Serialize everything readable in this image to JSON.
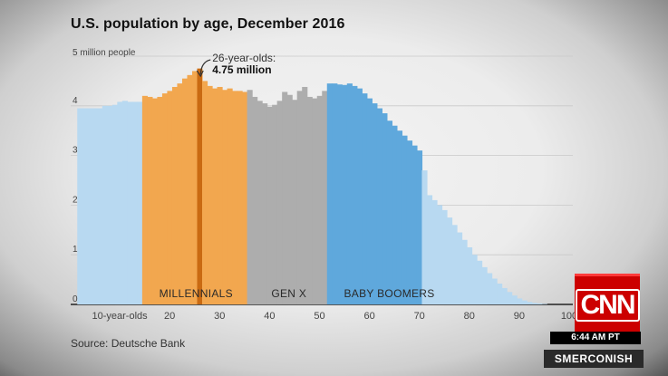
{
  "chart_data": {
    "type": "area",
    "title": "U.S. population by age, December 2016",
    "source": "Source: Deutsche Bank",
    "ylabel_top": "5 million people",
    "ylim": [
      0,
      5
    ],
    "xlim": [
      2,
      100
    ],
    "y_ticks": [
      "0",
      "1",
      "2",
      "3",
      "4"
    ],
    "x_ticks": [
      {
        "value": 10,
        "label": "10-year-olds"
      },
      {
        "value": 20,
        "label": "20"
      },
      {
        "value": 30,
        "label": "30"
      },
      {
        "value": 40,
        "label": "40"
      },
      {
        "value": 50,
        "label": "50"
      },
      {
        "value": 60,
        "label": "60"
      },
      {
        "value": 70,
        "label": "70"
      },
      {
        "value": 80,
        "label": "80"
      },
      {
        "value": 90,
        "label": "90"
      },
      {
        "value": 100,
        "label": "100"
      }
    ],
    "grid": true,
    "annotation": {
      "line1": "26-year-olds:",
      "line2": "4.75 million",
      "age": 26
    },
    "series": [
      {
        "name": "MILLENNIALS",
        "color": "#f2a74f",
        "from": 15,
        "to": 35
      },
      {
        "name": "GEN X",
        "color": "#adadad",
        "from": 36,
        "to": 51
      },
      {
        "name": "BABY BOOMERS",
        "color": "#5fa8dc",
        "from": 52,
        "to": 70
      }
    ],
    "other_color": "#b8d9f1",
    "ages": [
      2,
      3,
      4,
      5,
      6,
      7,
      8,
      9,
      10,
      11,
      12,
      13,
      14,
      15,
      16,
      17,
      18,
      19,
      20,
      21,
      22,
      23,
      24,
      25,
      26,
      27,
      28,
      29,
      30,
      31,
      32,
      33,
      34,
      35,
      36,
      37,
      38,
      39,
      40,
      41,
      42,
      43,
      44,
      45,
      46,
      47,
      48,
      49,
      50,
      51,
      52,
      53,
      54,
      55,
      56,
      57,
      58,
      59,
      60,
      61,
      62,
      63,
      64,
      65,
      66,
      67,
      68,
      69,
      70,
      71,
      72,
      73,
      74,
      75,
      76,
      77,
      78,
      79,
      80,
      81,
      82,
      83,
      84,
      85,
      86,
      87,
      88,
      89,
      90,
      91,
      92,
      93,
      94,
      95,
      96,
      97,
      98,
      99
    ],
    "values": [
      3.95,
      3.95,
      3.95,
      3.95,
      3.95,
      4.0,
      4.0,
      4.02,
      4.08,
      4.1,
      4.08,
      4.08,
      4.08,
      4.2,
      4.18,
      4.15,
      4.18,
      4.25,
      4.3,
      4.38,
      4.45,
      4.55,
      4.62,
      4.7,
      4.75,
      4.5,
      4.4,
      4.35,
      4.38,
      4.32,
      4.35,
      4.3,
      4.3,
      4.28,
      4.32,
      4.18,
      4.1,
      4.05,
      3.98,
      4.02,
      4.1,
      4.28,
      4.22,
      4.12,
      4.3,
      4.38,
      4.18,
      4.15,
      4.2,
      4.3,
      4.45,
      4.45,
      4.43,
      4.42,
      4.45,
      4.4,
      4.35,
      4.25,
      4.15,
      4.05,
      3.95,
      3.85,
      3.7,
      3.6,
      3.5,
      3.4,
      3.3,
      3.2,
      3.1,
      2.7,
      2.2,
      2.1,
      2.0,
      1.9,
      1.75,
      1.6,
      1.45,
      1.3,
      1.15,
      1.0,
      0.88,
      0.75,
      0.63,
      0.52,
      0.42,
      0.33,
      0.25,
      0.18,
      0.12,
      0.08,
      0.05,
      0.03,
      0.02,
      0.01,
      0.0,
      0.0,
      0.0,
      0.0
    ]
  },
  "cnn": {
    "logo": "CNN",
    "time": "6:44 AM PT",
    "show": "SMERCONISH"
  }
}
